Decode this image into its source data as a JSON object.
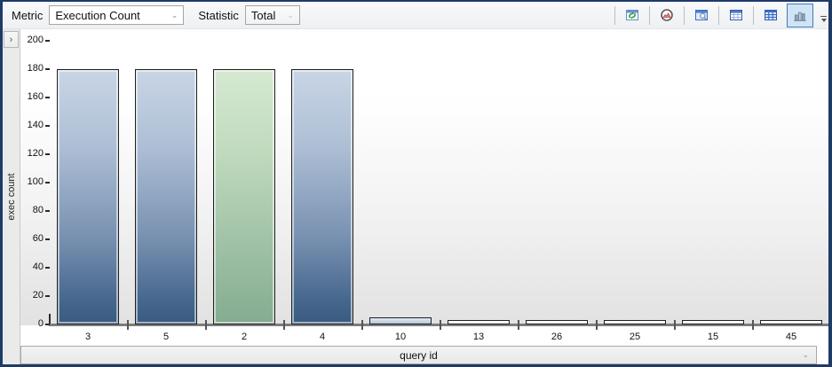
{
  "window": {
    "border_color": "#1e3a68"
  },
  "toolbar": {
    "metric_label": "Metric",
    "metric_value": "Execution Count",
    "statistic_label": "Statistic",
    "statistic_value": "Total",
    "combo_chevron": "⌄",
    "buttons": [
      {
        "label": "refresh"
      },
      {
        "label": "gauge"
      },
      {
        "label": "window-preview"
      },
      {
        "label": "table-view"
      },
      {
        "label": "grid-view"
      },
      {
        "label": "chart-view",
        "selected": true
      }
    ]
  },
  "sidebar": {
    "expand_chevron": "›"
  },
  "chart_data": {
    "type": "bar",
    "categories": [
      "3",
      "5",
      "2",
      "4",
      "10",
      "13",
      "26",
      "25",
      "15",
      "45"
    ],
    "values": [
      180,
      180,
      180,
      180,
      5,
      3,
      3,
      3,
      3,
      3
    ],
    "bar_styles": [
      "big-blue",
      "big-blue",
      "big-green",
      "big-blue",
      "small-blue",
      "small-white",
      "small-white",
      "small-white",
      "small-white",
      "small-white"
    ],
    "highlighted_category": "2",
    "title": "",
    "xlabel": "query id",
    "ylabel": "exec count",
    "ylim": [
      0,
      200
    ],
    "ytick_step": 20,
    "grid": false,
    "legend": "none",
    "colors": {
      "bar_top": "#c8d5e5",
      "bar_bottom": "#3a5a82",
      "highlight_top": "#d5e9d1",
      "highlight_bottom": "#84ac90",
      "small_bar_top": "#fbfcfd",
      "small_bar_bottom": "#eceef1",
      "small_blue_top": "#e3eaf2",
      "small_blue_bottom": "#b4c6da",
      "selected_button_bg": "#cfe4f7",
      "selected_button_border": "#4a7ab0"
    }
  },
  "xaxis_combo": {
    "label": "query id",
    "chevron": "⌄"
  }
}
